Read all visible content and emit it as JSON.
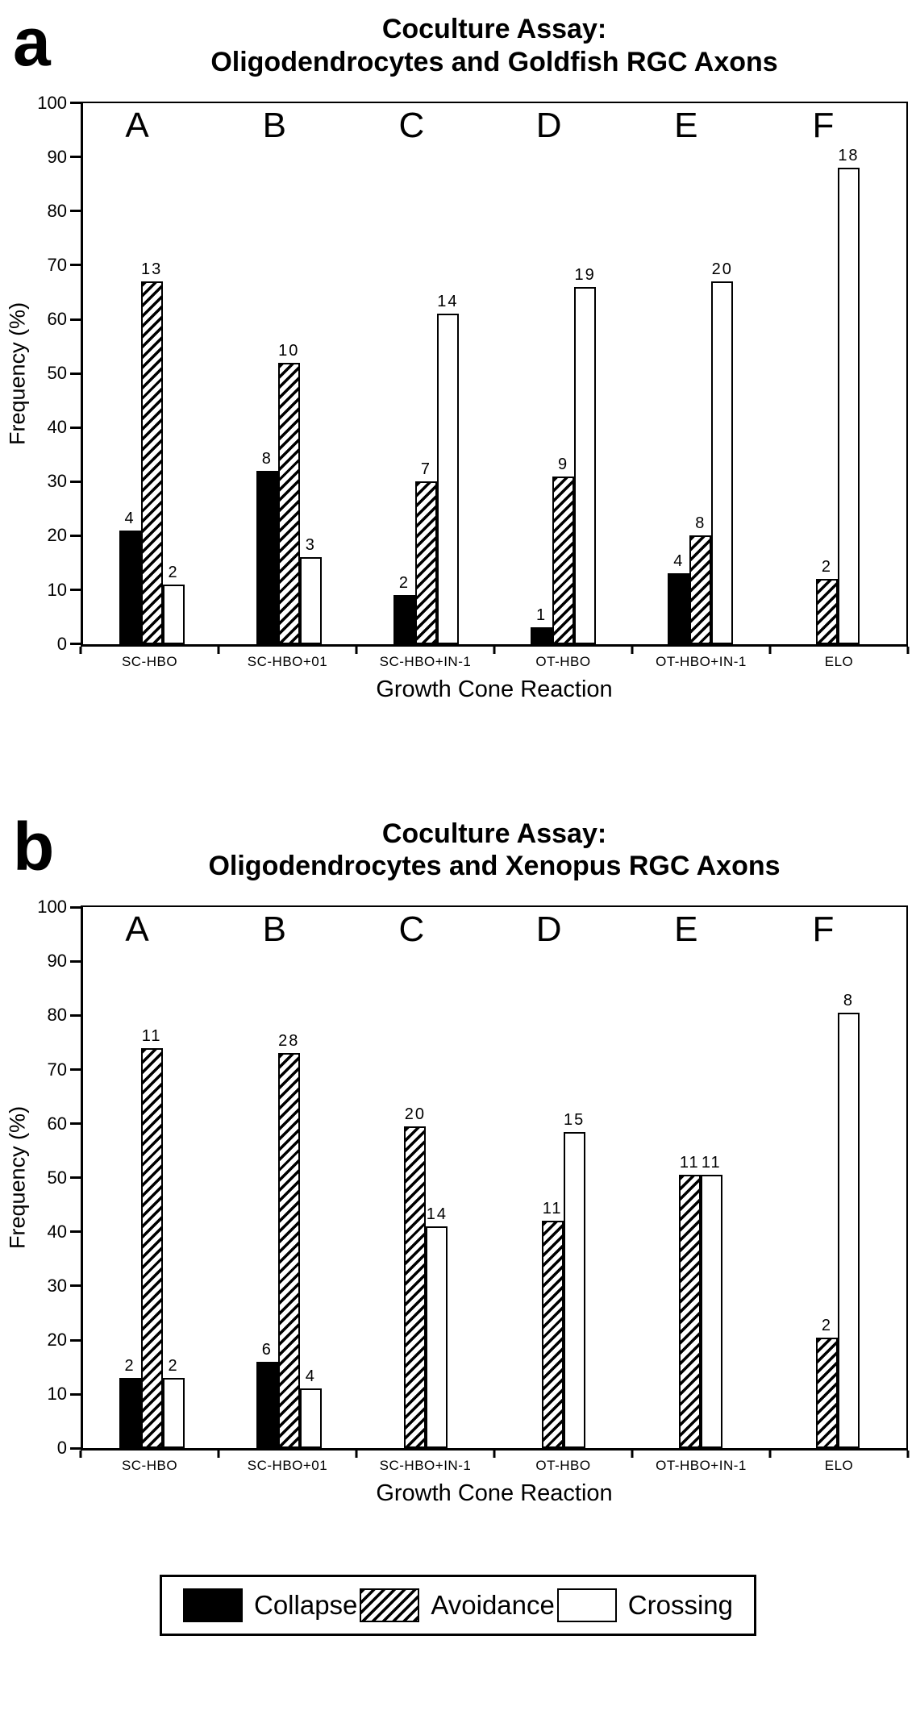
{
  "colors": {
    "foreground": "#000000",
    "background": "#ffffff"
  },
  "legend": {
    "items": [
      {
        "label": "Collapse",
        "pattern": "solid-black"
      },
      {
        "label": "Avoidance",
        "pattern": "diagonal-hatch"
      },
      {
        "label": "Crossing",
        "pattern": "white"
      }
    ]
  },
  "chart_data": [
    {
      "panel_label": "a",
      "type": "bar",
      "title_line1": "Coculture Assay:",
      "title_line2": "Oligodendrocytes and Goldfish RGC Axons",
      "xlabel": "Growth Cone Reaction",
      "ylabel": "Frequency (%)",
      "ylim": [
        0,
        100
      ],
      "ytick_step": 10,
      "grid": false,
      "group_letters": [
        "A",
        "B",
        "C",
        "D",
        "E",
        "F"
      ],
      "categories": [
        "SC-HBO",
        "SC-HBO+01",
        "SC-HBO+IN-1",
        "OT-HBO",
        "OT-HBO+IN-1",
        "ELO"
      ],
      "series": [
        {
          "name": "Collapse",
          "values": [
            21,
            32,
            9,
            3,
            13,
            null
          ],
          "counts": [
            "4",
            "8",
            "2",
            "1",
            "4",
            ""
          ]
        },
        {
          "name": "Avoidance",
          "values": [
            67,
            52,
            30,
            31,
            20,
            12
          ],
          "counts": [
            "13",
            "10",
            "7",
            "9",
            "8",
            "2"
          ]
        },
        {
          "name": "Crossing",
          "values": [
            11,
            16,
            61,
            66,
            67,
            88
          ],
          "counts": [
            "2",
            "3",
            "14",
            "19",
            "20",
            "18"
          ]
        }
      ]
    },
    {
      "panel_label": "b",
      "type": "bar",
      "title_line1": "Coculture Assay:",
      "title_line2": "Oligodendrocytes and Xenopus RGC Axons",
      "xlabel": "Growth Cone Reaction",
      "ylabel": "Frequency (%)",
      "ylim": [
        0,
        100
      ],
      "ytick_step": 10,
      "grid": false,
      "group_letters": [
        "A",
        "B",
        "C",
        "D",
        "E",
        "F"
      ],
      "categories": [
        "SC-HBO",
        "SC-HBO+01",
        "SC-HBO+IN-1",
        "OT-HBO",
        "OT-HBO+IN-1",
        "ELO"
      ],
      "series": [
        {
          "name": "Collapse",
          "values": [
            13,
            16,
            null,
            null,
            null,
            null
          ],
          "counts": [
            "2",
            "6",
            "",
            "",
            "",
            ""
          ]
        },
        {
          "name": "Avoidance",
          "values": [
            74,
            73,
            59.5,
            42,
            50.5,
            20.5
          ],
          "counts": [
            "11",
            "28",
            "20",
            "11",
            "11",
            "2"
          ]
        },
        {
          "name": "Crossing",
          "values": [
            13,
            11,
            41,
            58.5,
            50.5,
            80.5
          ],
          "counts": [
            "2",
            "4",
            "14",
            "15",
            "11",
            "8"
          ]
        }
      ]
    }
  ]
}
